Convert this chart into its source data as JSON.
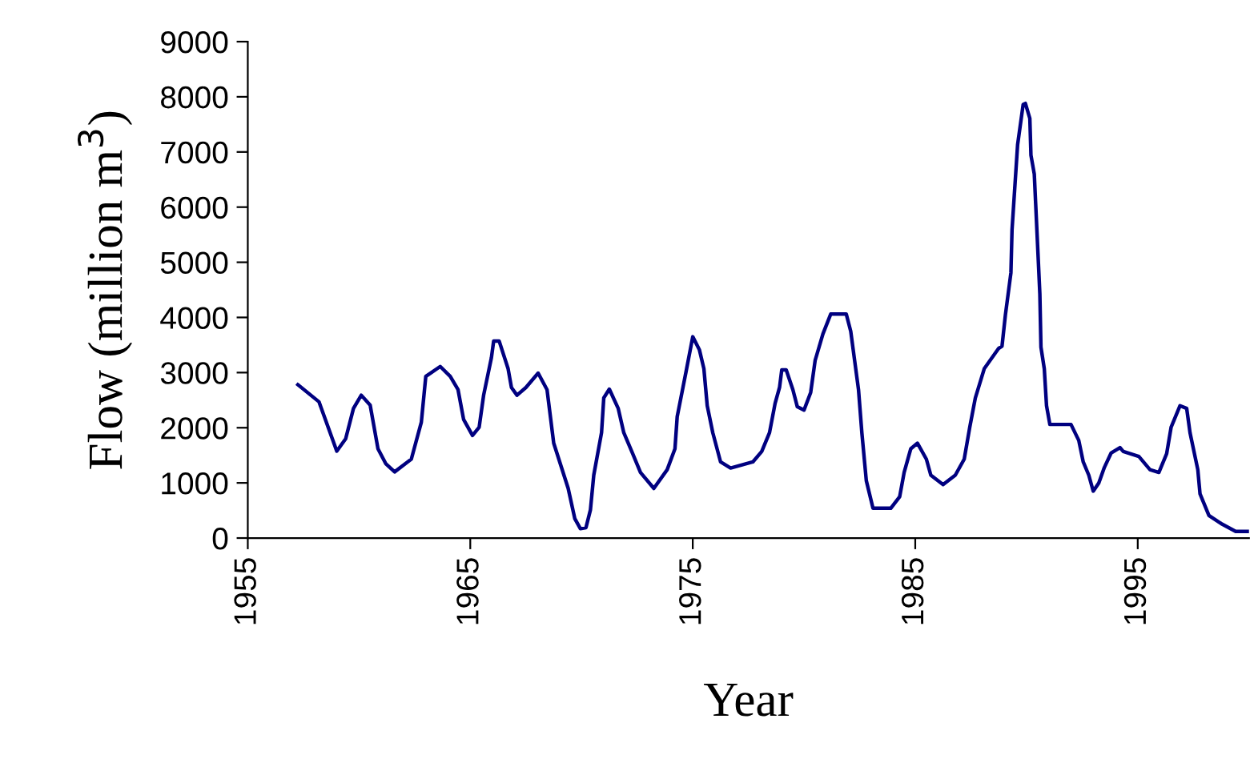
{
  "chart_data": {
    "type": "line",
    "xlabel": "Year",
    "ylabel": "Flow (million m$^{3}$)",
    "xlim": [
      1955,
      2000
    ],
    "xticks": [
      1955,
      1965,
      1975,
      1985,
      1995
    ],
    "ylim": [
      0,
      9000
    ],
    "yticks": [
      0,
      1000,
      2000,
      3000,
      4000,
      5000,
      6000,
      7000,
      8000,
      9000
    ],
    "grid": false,
    "legend": false,
    "line_style": "solid",
    "marker": "none",
    "series": [
      {
        "color": "#000080",
        "x": [
          1957.25,
          1958.2,
          1959.0,
          1959.4,
          1959.75,
          1960.1,
          1960.5,
          1960.85,
          1961.2,
          1961.6,
          1962.35,
          1962.8,
          1963.0,
          1963.65,
          1964.1,
          1964.45,
          1964.7,
          1965.1,
          1965.4,
          1965.6,
          1965.95,
          1966.05,
          1966.3,
          1966.7,
          1966.85,
          1967.1,
          1967.5,
          1968.05,
          1968.45,
          1968.75,
          1969.4,
          1969.7,
          1969.95,
          1970.2,
          1970.4,
          1970.55,
          1970.9,
          1971.0,
          1971.25,
          1971.65,
          1971.9,
          1972.3,
          1972.65,
          1973.25,
          1973.85,
          1974.2,
          1974.3,
          1974.7,
          1975.0,
          1975.3,
          1975.5,
          1975.65,
          1975.9,
          1976.25,
          1976.7,
          1977.7,
          1978.1,
          1978.45,
          1978.7,
          1978.9,
          1979.0,
          1979.2,
          1979.5,
          1979.7,
          1980.0,
          1980.3,
          1980.5,
          1980.85,
          1981.2,
          1981.9,
          1982.1,
          1982.45,
          1982.6,
          1982.8,
          1983.1,
          1983.9,
          1984.3,
          1984.5,
          1984.8,
          1985.1,
          1985.5,
          1985.7,
          1986.25,
          1986.8,
          1987.2,
          1987.45,
          1987.7,
          1988.1,
          1988.75,
          1988.9,
          1989.05,
          1989.3,
          1989.35,
          1989.6,
          1989.85,
          1989.95,
          1990.15,
          1990.2,
          1990.35,
          1990.6,
          1990.65,
          1990.8,
          1990.9,
          1991.05,
          1992.0,
          1992.35,
          1992.55,
          1992.8,
          1993.0,
          1993.25,
          1993.5,
          1993.8,
          1994.2,
          1994.35,
          1995.05,
          1995.55,
          1995.95,
          1996.3,
          1996.5,
          1996.9,
          1997.2,
          1997.35,
          1997.7,
          1997.8,
          1998.2,
          1998.8,
          1999.4,
          2000.0
        ],
        "values": [
          2780,
          2470,
          1575,
          1800,
          2350,
          2590,
          2410,
          1620,
          1350,
          1200,
          1430,
          2100,
          2930,
          3110,
          2930,
          2690,
          2150,
          1860,
          2010,
          2590,
          3270,
          3570,
          3570,
          3070,
          2730,
          2590,
          2730,
          2990,
          2690,
          1720,
          900,
          350,
          170,
          190,
          510,
          1140,
          1910,
          2540,
          2700,
          2350,
          1910,
          1530,
          1190,
          900,
          1240,
          1620,
          2200,
          3020,
          3650,
          3410,
          3070,
          2400,
          1910,
          1380,
          1270,
          1380,
          1570,
          1910,
          2440,
          2730,
          3050,
          3050,
          2690,
          2380,
          2320,
          2640,
          3220,
          3700,
          4060,
          4060,
          3750,
          2690,
          1910,
          1040,
          540,
          540,
          750,
          1190,
          1620,
          1720,
          1430,
          1140,
          970,
          1140,
          1430,
          2010,
          2540,
          3070,
          3440,
          3480,
          4040,
          4810,
          5590,
          7130,
          7860,
          7880,
          7610,
          6940,
          6600,
          4430,
          3460,
          3070,
          2400,
          2060,
          2060,
          1770,
          1380,
          1140,
          850,
          1000,
          1280,
          1540,
          1640,
          1570,
          1480,
          1240,
          1190,
          1530,
          2010,
          2400,
          2350,
          1910,
          1240,
          800,
          410,
          250,
          120,
          120
        ]
      }
    ]
  }
}
